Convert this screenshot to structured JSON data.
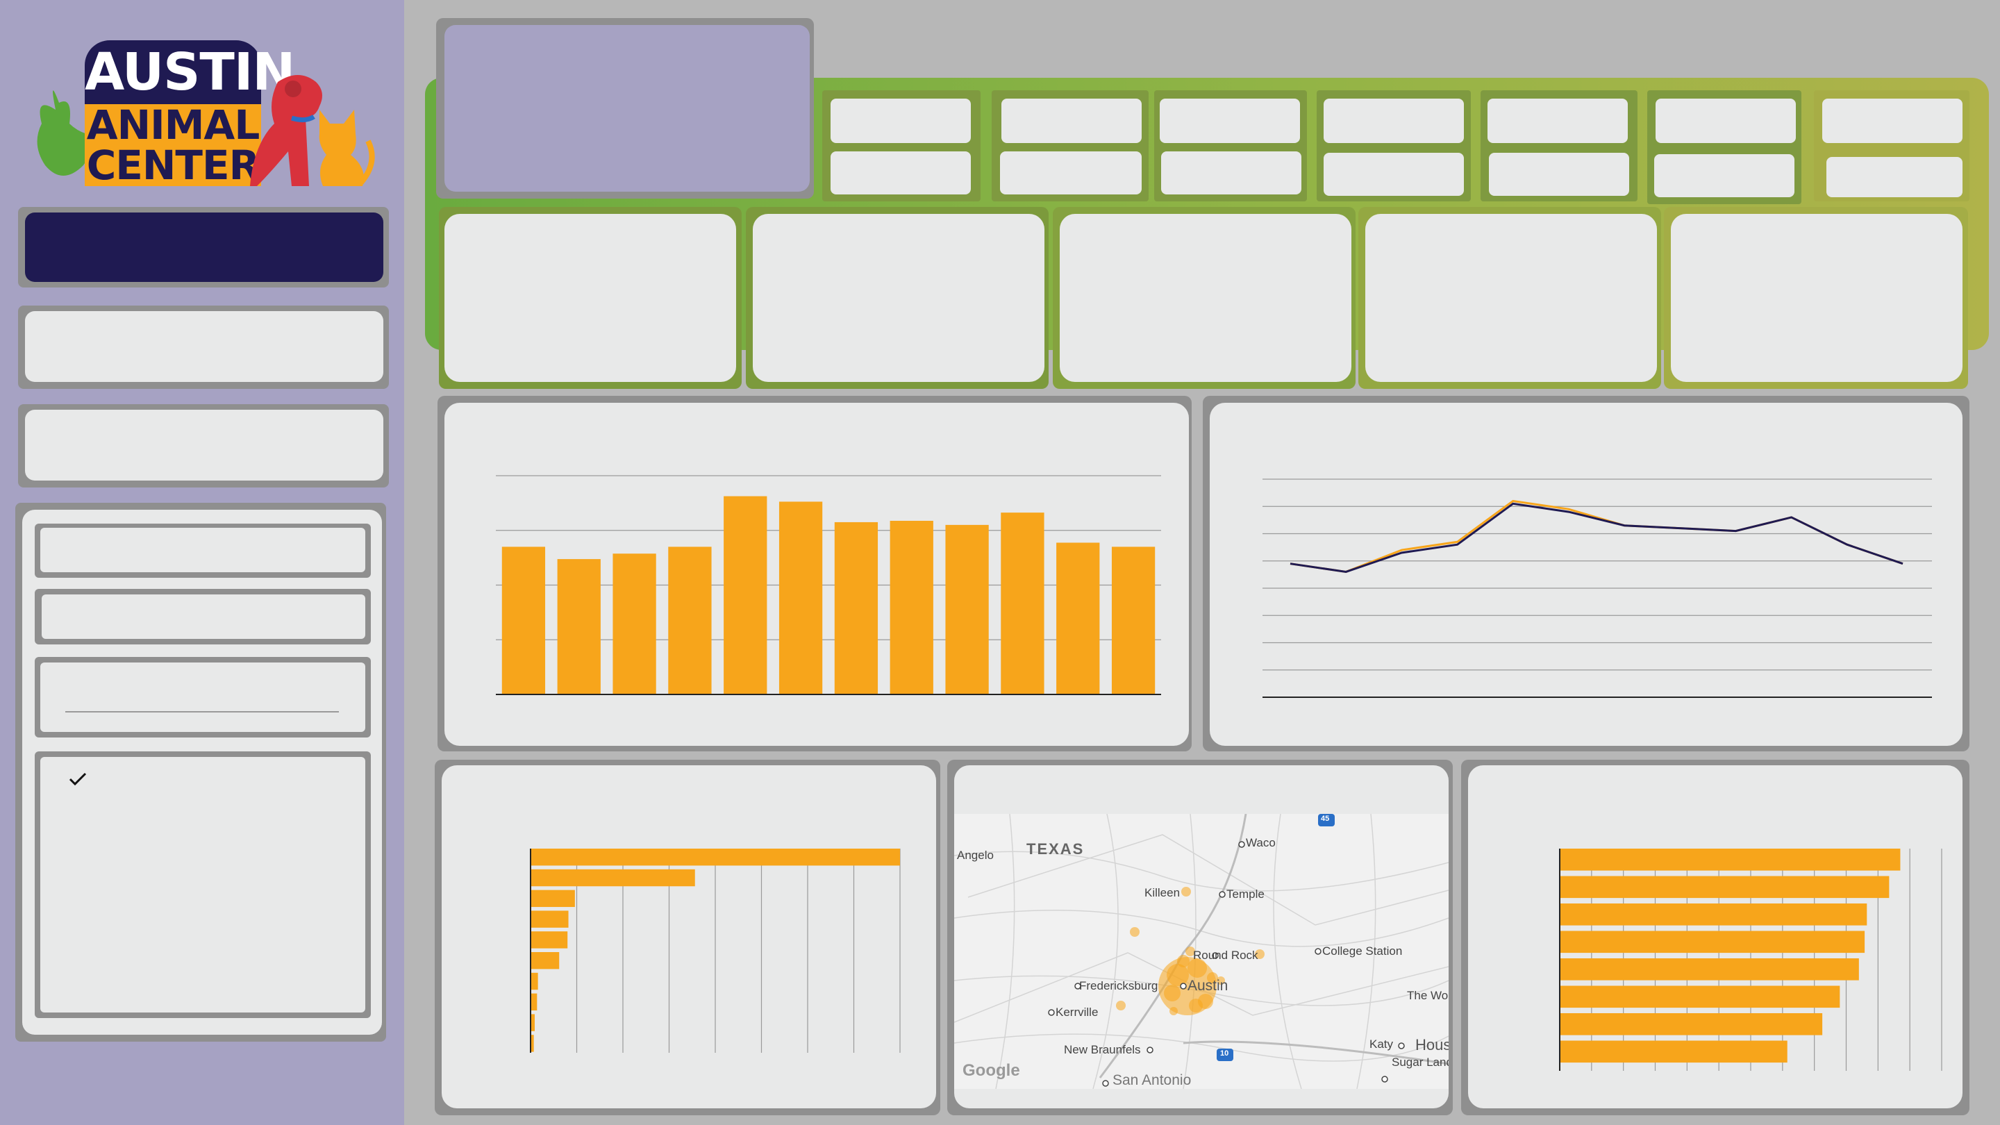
{
  "app": {
    "logo": {
      "line1": "AUSTIN",
      "line2": "ANIMAL",
      "line3": "CENTER"
    }
  },
  "colors": {
    "sidebar_bg": "#a6a2c3",
    "navy": "#1f1a52",
    "orange": "#f7a51b",
    "card": "#e8e9e9",
    "header_green": "#6aab3f",
    "header_olive": "#b0b34a"
  },
  "sidebar": {
    "filter_checkbox": {
      "checked": true,
      "icon": "checkmark-icon"
    }
  },
  "map": {
    "region_label": "TEXAS",
    "places": [
      "Waco",
      "Angelo",
      "Killeen",
      "Temple",
      "Round Rock",
      "College Station",
      "Fredericksburg",
      "Austin",
      "Kerrville",
      "The Woodla",
      "New Braunfels",
      "Katy",
      "Hous",
      "Sugar Land",
      "San Antonio"
    ],
    "highway_shields": [
      "45",
      "10"
    ],
    "attribution": "Google"
  },
  "chart_data": [
    {
      "type": "bar",
      "orientation": "vertical",
      "values": [
        108,
        99,
        103,
        108,
        145,
        141,
        126,
        127,
        124,
        133,
        111,
        108
      ],
      "ylim": [
        0,
        160
      ],
      "grid": true,
      "color": "#f7a51b"
    },
    {
      "type": "line",
      "series": [
        {
          "color": "#f7a51b",
          "values": [
            49,
            46,
            54,
            57,
            72,
            69,
            63,
            62,
            61,
            66,
            56,
            49
          ]
        },
        {
          "color": "#1f1a52",
          "values": [
            49,
            46,
            53,
            56,
            71,
            68,
            63,
            62,
            61,
            66,
            56,
            49
          ]
        }
      ],
      "ylim": [
        0,
        80
      ],
      "grid": true
    },
    {
      "type": "bar",
      "orientation": "horizontal",
      "values": [
        8000,
        3560,
        960,
        820,
        800,
        620,
        160,
        140,
        90,
        70
      ],
      "xlim": [
        0,
        8000
      ],
      "grid": true,
      "color": "#f7a51b"
    },
    {
      "type": "bar",
      "orientation": "horizontal",
      "values": [
        10700,
        10350,
        9650,
        9580,
        9400,
        8800,
        8250,
        7150
      ],
      "xlim": [
        0,
        12000
      ],
      "grid": true,
      "color": "#f7a51b"
    }
  ]
}
